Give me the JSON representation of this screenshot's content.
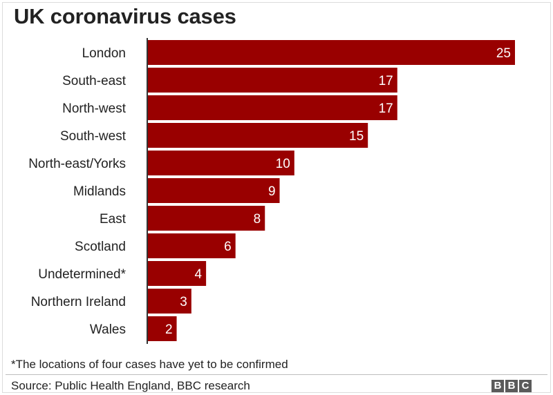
{
  "title": "UK coronavirus cases",
  "chart_data": {
    "type": "bar",
    "orientation": "horizontal",
    "title": "UK coronavirus cases",
    "categories": [
      "London",
      "South-east",
      "North-west",
      "South-west",
      "North-east/Yorks",
      "Midlands",
      "East",
      "Scotland",
      "Undetermined*",
      "Northern Ireland",
      "Wales"
    ],
    "values": [
      25,
      17,
      17,
      15,
      10,
      9,
      8,
      6,
      4,
      3,
      2
    ],
    "bar_color": "#990000",
    "label_color": "#ffffff",
    "data_labels": "inside-end",
    "grid": false
  },
  "footnote": "*The locations of four cases have yet to be confirmed",
  "source": "Source: Public Health England, BBC research",
  "logo": [
    "B",
    "B",
    "C"
  ],
  "colors": {
    "bar": "#990000",
    "text": "#222222",
    "logo": "#5a5a5a"
  }
}
